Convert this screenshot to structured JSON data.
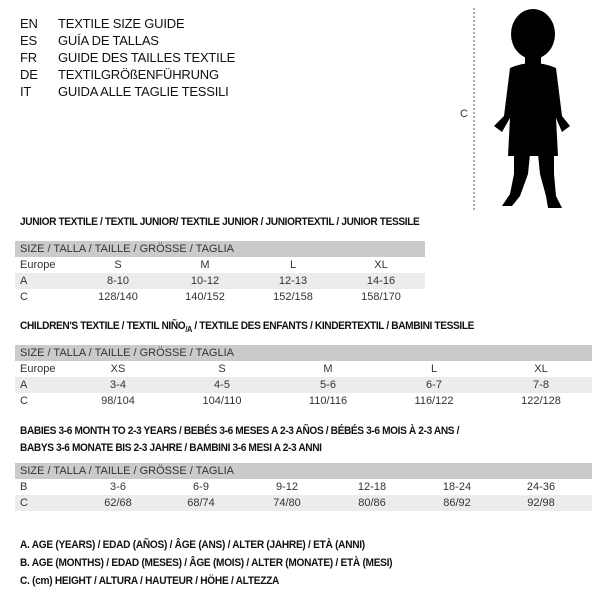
{
  "languages": [
    {
      "code": "EN",
      "text": "TEXTILE SIZE GUIDE"
    },
    {
      "code": "ES",
      "text": "GUÍA DE TALLAS"
    },
    {
      "code": "FR",
      "text": "GUIDE DES TAILLES TEXTILE"
    },
    {
      "code": "DE",
      "text": "TEXTILGRÖßENFÜHRUNG"
    },
    {
      "code": "IT",
      "text": "GUIDA ALLE TAGLIE TESSILI"
    }
  ],
  "figure": {
    "measure_label": "C"
  },
  "size_header": "SIZE / TALLA / TAILLE / GRÖSSE / TAGLIA",
  "junior": {
    "title": "JUNIOR TEXTILE / TEXTIL JUNIOR/ TEXTILE JUNIOR / JUNIORTEXTIL / JUNIOR TESSILE",
    "rows": [
      {
        "label": "Europe",
        "cells": [
          "S",
          "M",
          "L",
          "XL"
        ]
      },
      {
        "label": "A",
        "cells": [
          "8-10",
          "10-12",
          "12-13",
          "14-16"
        ]
      },
      {
        "label": "C",
        "cells": [
          "128/140",
          "140/152",
          "152/158",
          "158/170"
        ]
      }
    ]
  },
  "children": {
    "title_a": "CHILDREN'S TEXTILE / TEXTIL NIÑO",
    "title_sub": "/A",
    "title_b": " / TEXTILE DES ENFANTS / KINDERTEXTIL / BAMBINI TESSILE",
    "rows": [
      {
        "label": "Europe",
        "cells": [
          "XS",
          "S",
          "M",
          "L",
          "XL"
        ]
      },
      {
        "label": "A",
        "cells": [
          "3-4",
          "4-5",
          "5-6",
          "6-7",
          "7-8"
        ]
      },
      {
        "label": "C",
        "cells": [
          "98/104",
          "104/110",
          "110/116",
          "116/122",
          "122/128"
        ]
      }
    ]
  },
  "babies": {
    "title_line1": "BABIES 3-6 MONTH TO 2-3 YEARS / BEBÉS 3-6 MESES A 2-3 AÑOS / BÉBÉS 3-6 MOIS À 2-3 ANS /",
    "title_line2": "BABYS 3-6 MONATE BIS 2-3 JAHRE / BAMBINI 3-6 MESI A 2-3 ANNI",
    "rows": [
      {
        "label": "B",
        "cells": [
          "3-6",
          "6-9",
          "9-12",
          "12-18",
          "18-24",
          "24-36"
        ]
      },
      {
        "label": "C",
        "cells": [
          "62/68",
          "68/74",
          "74/80",
          "80/86",
          "86/92",
          "92/98"
        ]
      }
    ]
  },
  "legend": [
    "A. AGE (YEARS) / EDAD (AÑOS) / ÂGE (ANS) / ALTER (JAHRE) / ETÀ (ANNI)",
    "B. AGE (MONTHS) / EDAD (MESES) / ÂGE (MOIS) / ALTER (MONATE) / ETÀ (MESI)",
    "C. (cm) HEIGHT / ALTURA / HAUTEUR / HÖHE / ALTEZZA"
  ]
}
